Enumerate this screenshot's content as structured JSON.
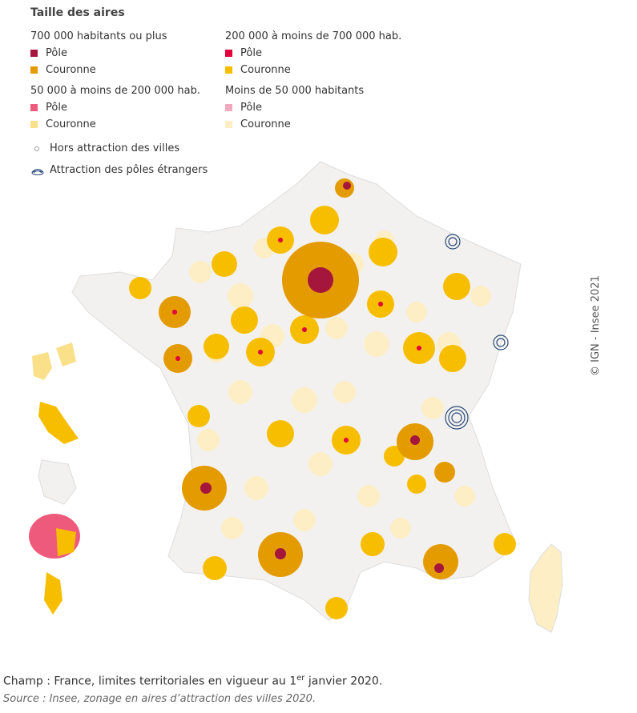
{
  "legend": {
    "title": "Taille des aires",
    "groups": [
      {
        "title": "700 000 habitants ou plus",
        "items": [
          {
            "label": "Pôle",
            "color": "#a5163d"
          },
          {
            "label": "Couronne",
            "color": "#e39b00"
          }
        ]
      },
      {
        "title": "200 000 à moins de 700 000 hab.",
        "items": [
          {
            "label": "Pôle",
            "color": "#e0003c"
          },
          {
            "label": "Couronne",
            "color": "#f7be00"
          }
        ]
      },
      {
        "title": "50 000 à moins de 200 000 hab.",
        "items": [
          {
            "label": "Pôle",
            "color": "#ee5a7c"
          },
          {
            "label": "Couronne",
            "color": "#fbe08a"
          }
        ]
      },
      {
        "title": "Moins de 50 000 habitants",
        "items": [
          {
            "label": "Pôle",
            "color": "#f2a9c0"
          },
          {
            "label": "Couronne",
            "color": "#fdeec6"
          }
        ]
      }
    ],
    "outside": "Hors attraction des villes",
    "foreign": "Attraction des pôles étrangers"
  },
  "credit": "© IGN - Insee 2021",
  "footer": {
    "scope_before": "Champ : France, limites territoriales en vigueur au 1",
    "scope_sup": "er",
    "scope_after": " janvier 2020.",
    "source": "Source : Insee, zonage en aires d’attraction des villes 2020."
  }
}
